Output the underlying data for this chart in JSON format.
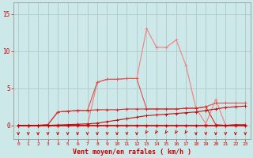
{
  "x": [
    0,
    1,
    2,
    3,
    4,
    5,
    6,
    7,
    8,
    9,
    10,
    11,
    12,
    13,
    14,
    15,
    16,
    17,
    18,
    19,
    20,
    21,
    22,
    23
  ],
  "y_base": [
    0,
    0,
    0,
    0,
    0,
    0,
    0,
    0,
    0,
    0,
    0,
    0,
    0,
    0,
    0,
    0,
    0,
    0,
    0,
    0,
    0,
    0,
    0,
    0
  ],
  "y_slow": [
    0,
    0,
    0,
    0,
    0.05,
    0.1,
    0.15,
    0.2,
    0.3,
    0.5,
    0.7,
    0.9,
    1.1,
    1.3,
    1.4,
    1.5,
    1.6,
    1.7,
    1.8,
    2.0,
    2.2,
    2.4,
    2.5,
    2.6
  ],
  "y_med1": [
    0,
    0,
    0,
    0.1,
    1.8,
    1.9,
    2.0,
    2.0,
    2.1,
    2.1,
    2.1,
    2.2,
    2.2,
    2.2,
    2.2,
    2.2,
    2.2,
    2.3,
    2.3,
    2.5,
    0.1,
    0.0,
    0.1,
    0.1
  ],
  "y_med2": [
    0,
    0,
    0,
    0.1,
    1.8,
    1.9,
    2.0,
    2.0,
    5.8,
    6.2,
    6.2,
    6.3,
    6.3,
    2.2,
    2.2,
    2.2,
    2.2,
    2.3,
    2.3,
    2.5,
    3.0,
    3.0,
    3.0,
    3.0
  ],
  "y_peak": [
    0,
    0,
    0,
    0,
    0,
    0,
    0,
    0,
    5.8,
    6.2,
    6.2,
    6.3,
    6.3,
    13.0,
    10.5,
    10.5,
    11.5,
    8.0,
    2.3,
    0.2,
    3.5,
    0.0,
    0.1,
    0.1
  ],
  "bg_color": "#cce8e8",
  "grid_color": "#b0c8c8",
  "lc1": "#f08080",
  "lc2": "#e05050",
  "lc3": "#d03030",
  "lc4": "#c01010",
  "lc5": "#cc0000",
  "xlabel": "Vent moyen/en rafales ( km/h )",
  "yticks": [
    0,
    5,
    10,
    15
  ],
  "xlim": [
    -0.5,
    23.5
  ],
  "ylim": [
    -1.8,
    16.5
  ],
  "arrow_dirs": [
    0,
    0,
    0,
    0,
    0,
    0,
    0,
    0,
    0,
    0,
    0,
    0,
    0,
    1,
    1,
    1,
    1,
    1,
    0,
    0,
    0,
    0,
    0,
    0
  ]
}
